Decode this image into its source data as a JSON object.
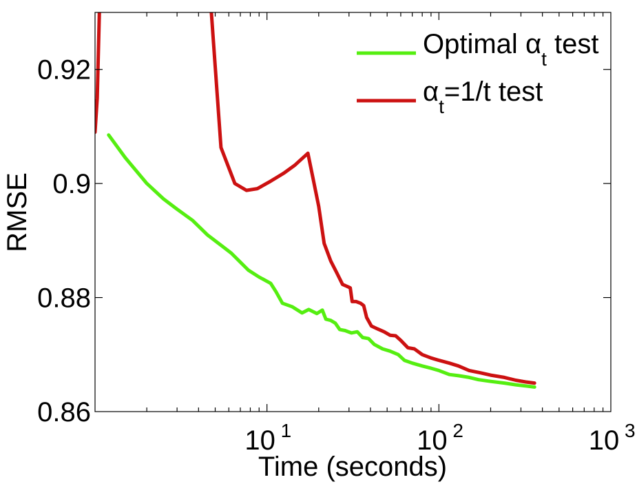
{
  "chart_data": {
    "type": "line",
    "xscale": "log",
    "xlabel": "Time (seconds)",
    "ylabel": "RMSE",
    "xlim": [
      1,
      1000
    ],
    "ylim": [
      0.86,
      0.93
    ],
    "yticks": [
      0.86,
      0.88,
      0.9,
      0.92
    ],
    "ytick_labels": [
      "0.86",
      "0.88",
      "0.9",
      "0.92"
    ],
    "xticks": [
      10,
      100,
      1000
    ],
    "xtick_labels": [
      {
        "base": "10",
        "exp": "1"
      },
      {
        "base": "10",
        "exp": "2"
      },
      {
        "base": "10",
        "exp": "3"
      }
    ],
    "grid": false,
    "legend_position": "top-right",
    "series": [
      {
        "name": "Optimal α_t test",
        "legend": {
          "prefix": "Optimal ",
          "greek": "α",
          "sub": "t",
          "suffix": " test"
        },
        "color": "#55ee11",
        "points": [
          [
            1.2,
            0.9085
          ],
          [
            1.5,
            0.9045
          ],
          [
            2.0,
            0.9
          ],
          [
            2.5,
            0.8973
          ],
          [
            3.0,
            0.8955
          ],
          [
            3.7,
            0.8935
          ],
          [
            4.5,
            0.891
          ],
          [
            5.5,
            0.889
          ],
          [
            6.2,
            0.8878
          ],
          [
            7.8,
            0.8848
          ],
          [
            9.0,
            0.8836
          ],
          [
            10.5,
            0.8825
          ],
          [
            11.3,
            0.881
          ],
          [
            12.3,
            0.879
          ],
          [
            14.0,
            0.8784
          ],
          [
            16.0,
            0.8773
          ],
          [
            17.5,
            0.8779
          ],
          [
            19.5,
            0.8772
          ],
          [
            21.0,
            0.8778
          ],
          [
            22.0,
            0.8762
          ],
          [
            23.5,
            0.876
          ],
          [
            25.0,
            0.8755
          ],
          [
            26.5,
            0.8744
          ],
          [
            28.5,
            0.8742
          ],
          [
            31.0,
            0.8738
          ],
          [
            33.5,
            0.874
          ],
          [
            36.0,
            0.873
          ],
          [
            39.0,
            0.8728
          ],
          [
            42.0,
            0.8718
          ],
          [
            47.0,
            0.871
          ],
          [
            52.0,
            0.8706
          ],
          [
            58.0,
            0.87
          ],
          [
            63.0,
            0.869
          ],
          [
            70.0,
            0.8685
          ],
          [
            80.0,
            0.868
          ],
          [
            90.0,
            0.8676
          ],
          [
            100.0,
            0.8672
          ],
          [
            115.0,
            0.8665
          ],
          [
            130.0,
            0.8663
          ],
          [
            150.0,
            0.866
          ],
          [
            170.0,
            0.8656
          ],
          [
            200.0,
            0.8653
          ],
          [
            240.0,
            0.865
          ],
          [
            280.0,
            0.8647
          ],
          [
            320.0,
            0.8645
          ],
          [
            360.0,
            0.8643
          ]
        ]
      },
      {
        "name": "α_t=1/t test",
        "legend": {
          "prefix": "",
          "greek": "α",
          "sub": "t",
          "suffix": "=1/t test"
        },
        "color": "#cc1111",
        "points": [
          [
            1.0,
            0.909
          ],
          [
            1.03,
            0.915
          ],
          [
            1.06,
            0.93
          ],
          null,
          [
            4.75,
            0.93
          ],
          [
            5.4,
            0.9063
          ],
          [
            6.5,
            0.9
          ],
          [
            7.6,
            0.8988
          ],
          [
            8.8,
            0.8991
          ],
          [
            10.5,
            0.9004
          ],
          [
            12.5,
            0.9018
          ],
          [
            14.5,
            0.9032
          ],
          [
            17.3,
            0.9053
          ],
          [
            18.5,
            0.901
          ],
          [
            20.0,
            0.896
          ],
          [
            21.5,
            0.8895
          ],
          [
            23.5,
            0.8864
          ],
          [
            25.5,
            0.8843
          ],
          [
            27.5,
            0.8823
          ],
          [
            29.0,
            0.882
          ],
          [
            30.5,
            0.8817
          ],
          [
            31.3,
            0.8793
          ],
          [
            33.0,
            0.8793
          ],
          [
            35.0,
            0.879
          ],
          [
            36.5,
            0.8786
          ],
          [
            38.0,
            0.8765
          ],
          [
            40.5,
            0.875
          ],
          [
            44.0,
            0.8745
          ],
          [
            48.0,
            0.874
          ],
          [
            52.0,
            0.8734
          ],
          [
            56.0,
            0.8733
          ],
          [
            60.0,
            0.8725
          ],
          [
            66.0,
            0.8712
          ],
          [
            72.0,
            0.871
          ],
          [
            80.0,
            0.87
          ],
          [
            90.0,
            0.8694
          ],
          [
            100.0,
            0.869
          ],
          [
            115.0,
            0.8685
          ],
          [
            130.0,
            0.868
          ],
          [
            150.0,
            0.8672
          ],
          [
            175.0,
            0.8668
          ],
          [
            200.0,
            0.8664
          ],
          [
            240.0,
            0.866
          ],
          [
            280.0,
            0.8655
          ],
          [
            320.0,
            0.8652
          ],
          [
            360.0,
            0.865
          ]
        ]
      }
    ]
  }
}
